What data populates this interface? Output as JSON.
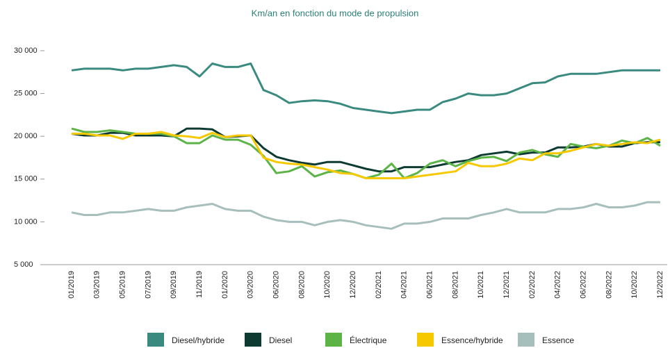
{
  "chart_data": {
    "type": "line",
    "title": "Km/an en fonction du mode de propulsion",
    "categories": [
      "01/2019",
      null,
      "03/2019",
      null,
      "05/2019",
      null,
      "07/2019",
      null,
      "09/2019",
      null,
      "11/2019",
      null,
      "01/2020",
      null,
      "03/2020",
      null,
      "06/2020",
      null,
      "08/2020",
      null,
      "10/2020",
      null,
      "12/2020",
      null,
      "02/2021",
      null,
      "04/2021",
      null,
      "06/2021",
      null,
      "08/2021",
      null,
      "10/2021",
      null,
      "12/2021",
      null,
      "02/2022",
      null,
      "04/2022",
      null,
      "06/2022",
      null,
      "08/2022",
      null,
      "10/2022",
      null,
      "12/2022"
    ],
    "series": [
      {
        "name": "Diesel/hybride",
        "color": "#3a8a80",
        "values": [
          27700,
          27900,
          27900,
          27900,
          27700,
          27900,
          27900,
          28100,
          28300,
          28100,
          27000,
          28500,
          28100,
          28100,
          28500,
          25400,
          24800,
          23900,
          24100,
          24200,
          24100,
          23800,
          23300,
          23100,
          22900,
          22700,
          22900,
          23100,
          23100,
          24000,
          24400,
          25000,
          24800,
          24800,
          25000,
          25600,
          26200,
          26300,
          27000,
          27300,
          27300,
          27300,
          27500,
          27700,
          27700,
          27700,
          27700
        ]
      },
      {
        "name": "Diesel",
        "color": "#0d3b32",
        "values": [
          20300,
          20100,
          20100,
          20400,
          20400,
          20100,
          20100,
          20100,
          20000,
          20900,
          20900,
          20800,
          19900,
          20000,
          20100,
          18600,
          17600,
          17200,
          16900,
          16700,
          17000,
          17000,
          16600,
          16200,
          15900,
          15900,
          16400,
          16400,
          16400,
          16700,
          17000,
          17200,
          17800,
          18000,
          18200,
          17900,
          18100,
          18100,
          18700,
          18700,
          18800,
          19100,
          18800,
          18800,
          19200,
          19300,
          19300
        ]
      },
      {
        "name": "Électrique",
        "color": "#5cb346",
        "values": [
          20900,
          20500,
          20500,
          20700,
          20500,
          20300,
          20300,
          20300,
          20000,
          19200,
          19200,
          20100,
          19600,
          19600,
          19000,
          17700,
          15700,
          15900,
          16500,
          15300,
          15800,
          16000,
          15600,
          15100,
          15500,
          16800,
          15100,
          15700,
          16800,
          17200,
          16500,
          17100,
          17500,
          17600,
          17100,
          18100,
          18400,
          17900,
          17600,
          19100,
          18800,
          18600,
          18900,
          19500,
          19200,
          19800,
          18900
        ]
      },
      {
        "name": "Essence/hybride",
        "color": "#f5c800",
        "values": [
          20300,
          20300,
          20100,
          20100,
          19700,
          20300,
          20300,
          20500,
          20100,
          20000,
          19800,
          20400,
          19900,
          20100,
          20100,
          17500,
          17000,
          16800,
          16700,
          16400,
          16100,
          15700,
          15600,
          15100,
          15100,
          15100,
          15100,
          15300,
          15500,
          15700,
          15900,
          16900,
          16500,
          16500,
          16800,
          17400,
          17200,
          18000,
          18000,
          18300,
          18700,
          19100,
          18900,
          19100,
          19300,
          19200,
          19600
        ]
      },
      {
        "name": "Essence",
        "color": "#a6bfbc",
        "values": [
          11100,
          10800,
          10800,
          11100,
          11100,
          11300,
          11500,
          11300,
          11300,
          11700,
          11900,
          12100,
          11500,
          11300,
          11300,
          10600,
          10200,
          10000,
          10000,
          9600,
          10000,
          10200,
          10000,
          9600,
          9400,
          9200,
          9800,
          9800,
          10000,
          10400,
          10400,
          10400,
          10800,
          11100,
          11500,
          11100,
          11100,
          11100,
          11500,
          11500,
          11700,
          12100,
          11700,
          11700,
          11900,
          12300,
          12300
        ]
      }
    ],
    "ylim": [
      5000,
      30000
    ],
    "yticks": [
      {
        "value": 5000,
        "label": "5 000"
      },
      {
        "value": 10000,
        "label": "10 000"
      },
      {
        "value": 15000,
        "label": "15 000"
      },
      {
        "value": 20000,
        "label": "20 000"
      },
      {
        "value": 25000,
        "label": "25 000"
      },
      {
        "value": 30000,
        "label": "30 000"
      }
    ],
    "legend": "bottom"
  }
}
